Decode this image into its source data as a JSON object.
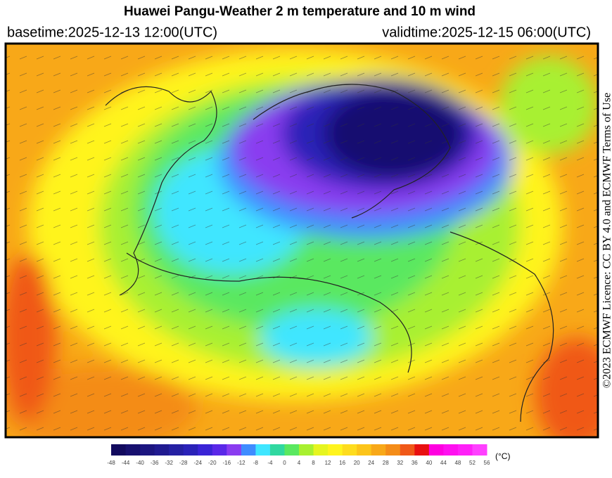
{
  "header": {
    "title": "Huawei Pangu-Weather  2 m temperature and 10 m wind",
    "basetime": "basetime:2025-12-13 12:00(UTC)",
    "validtime": "validtime:2025-12-15 06:00(UTC)"
  },
  "license": "©2023 ECMWF Licence: CC BY 4.0 and ECMWF Terms of Use",
  "colorbar": {
    "ticks": [
      -48,
      -44,
      -40,
      -36,
      -32,
      -28,
      -24,
      -20,
      -16,
      -12,
      -8,
      -4,
      0,
      4,
      8,
      12,
      16,
      20,
      24,
      28,
      32,
      36,
      40,
      44,
      48,
      52,
      56
    ],
    "colors": [
      "#120a5e",
      "#17106f",
      "#1c1580",
      "#201a90",
      "#2520a3",
      "#2a22b8",
      "#3a24d6",
      "#5a28e8",
      "#8a3cf0",
      "#3f8cff",
      "#3fe6ff",
      "#30d8a0",
      "#5ae860",
      "#a8f030",
      "#e6f520",
      "#fff41e",
      "#fedc1e",
      "#fcc41a",
      "#f8a818",
      "#f48c18",
      "#f05818",
      "#e81010",
      "#ff00e0",
      "#ff10f0",
      "#ff20f8",
      "#ff40ff"
    ],
    "unit": "(°C)"
  }
}
